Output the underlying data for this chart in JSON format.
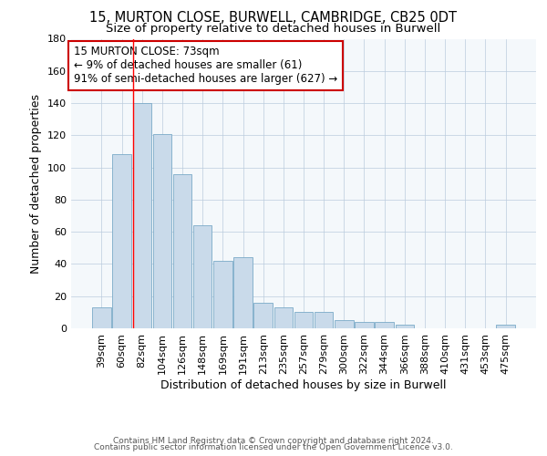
{
  "title1": "15, MURTON CLOSE, BURWELL, CAMBRIDGE, CB25 0DT",
  "title2": "Size of property relative to detached houses in Burwell",
  "xlabel": "Distribution of detached houses by size in Burwell",
  "ylabel": "Number of detached properties",
  "bar_color": "#c9daea",
  "bar_edge_color": "#7aaac8",
  "categories": [
    "39sqm",
    "60sqm",
    "82sqm",
    "104sqm",
    "126sqm",
    "148sqm",
    "169sqm",
    "191sqm",
    "213sqm",
    "235sqm",
    "257sqm",
    "279sqm",
    "300sqm",
    "322sqm",
    "344sqm",
    "366sqm",
    "388sqm",
    "410sqm",
    "431sqm",
    "453sqm",
    "475sqm"
  ],
  "values": [
    13,
    108,
    140,
    121,
    96,
    64,
    42,
    44,
    16,
    13,
    10,
    10,
    5,
    4,
    4,
    2,
    0,
    0,
    0,
    0,
    2
  ],
  "ylim": [
    0,
    180
  ],
  "yticks": [
    0,
    20,
    40,
    60,
    80,
    100,
    120,
    140,
    160,
    180
  ],
  "red_line_index": 2,
  "annotation_line1": "15 MURTON CLOSE: 73sqm",
  "annotation_line2": "← 9% of detached houses are smaller (61)",
  "annotation_line3": "91% of semi-detached houses are larger (627) →",
  "annotation_box_color": "#ffffff",
  "annotation_box_edge": "#cc0000",
  "footer1": "Contains HM Land Registry data © Crown copyright and database right 2024.",
  "footer2": "Contains public sector information licensed under the Open Government Licence v3.0.",
  "bg_color": "#f4f8fb",
  "grid_color": "#bbccdd",
  "title_fontsize": 10.5,
  "subtitle_fontsize": 9.5,
  "axis_label_fontsize": 9,
  "tick_fontsize": 8,
  "annotation_fontsize": 8.5,
  "footer_fontsize": 6.5
}
